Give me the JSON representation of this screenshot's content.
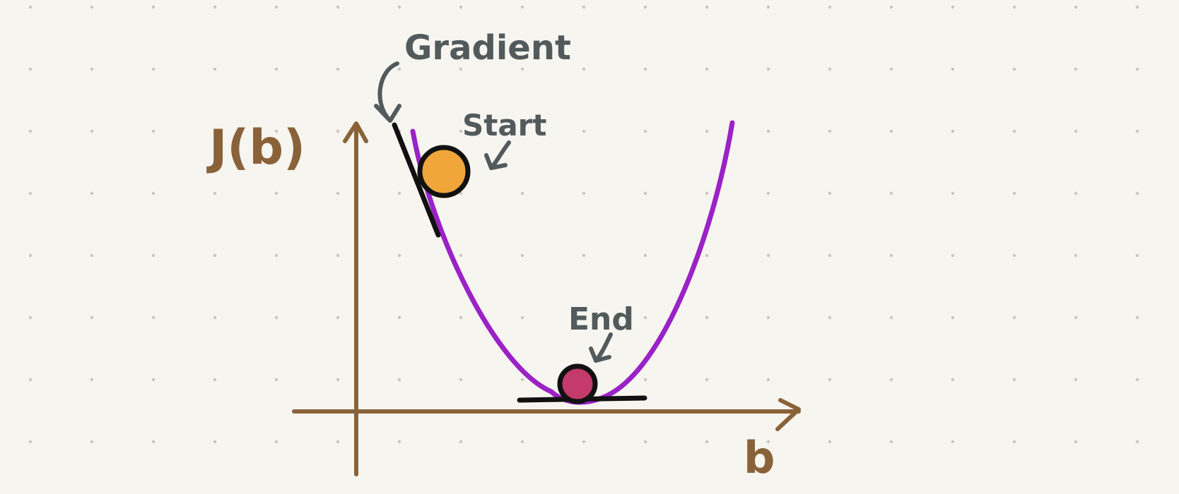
{
  "diagram": {
    "y_axis_label": "J(b)",
    "x_axis_label": "b",
    "annotations": {
      "gradient": "Gradient",
      "start": "Start",
      "end": "End"
    }
  },
  "colors": {
    "background": "#f7f5f0",
    "dot_grid": "#c9c6bf",
    "axis": "#8a6239",
    "curve": "#9b22c6",
    "tangent": "#111111",
    "annotation_text": "#525a5c",
    "start_ball": "#f0a63a",
    "end_ball": "#c43a6a",
    "ball_outline": "#111111"
  }
}
